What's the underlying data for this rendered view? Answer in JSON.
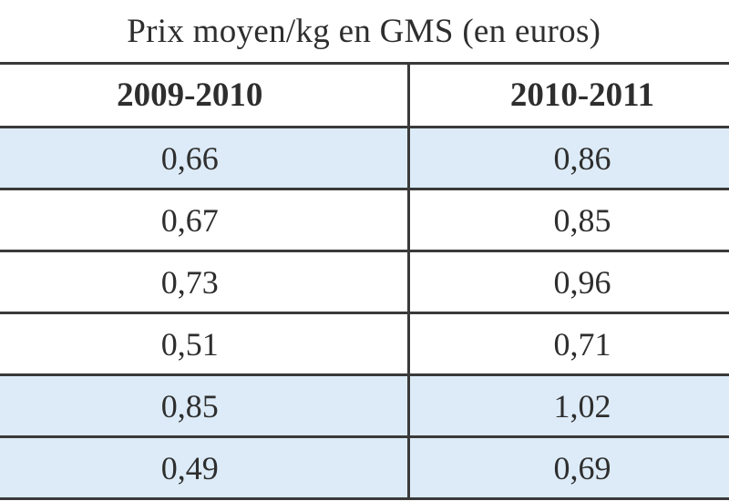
{
  "table": {
    "title": "Prix moyen/kg en GMS (en euros)",
    "headers": [
      "2009-2010",
      "2010-2011"
    ],
    "rows": [
      {
        "shaded": true,
        "values": [
          "0,66",
          "0,86"
        ]
      },
      {
        "shaded": false,
        "values": [
          "0,67",
          "0,85"
        ]
      },
      {
        "shaded": false,
        "values": [
          "0,73",
          "0,96"
        ]
      },
      {
        "shaded": false,
        "values": [
          "0,51",
          "0,71"
        ]
      },
      {
        "shaded": true,
        "values": [
          "0,85",
          "1,02"
        ]
      },
      {
        "shaded": true,
        "values": [
          "0,49",
          "0,69"
        ]
      }
    ]
  },
  "colors": {
    "shade": "#dcebf7",
    "border": "#3a3a3a",
    "text": "#2e2e2e"
  }
}
